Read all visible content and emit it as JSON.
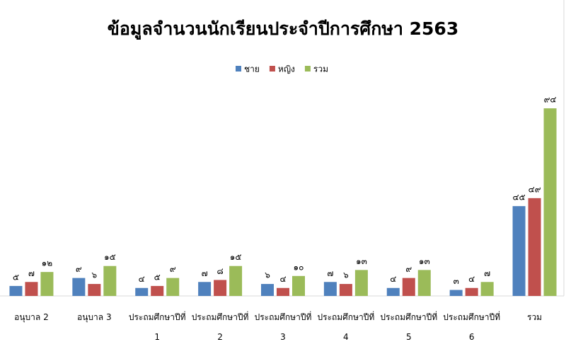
{
  "chart_data": {
    "type": "bar",
    "title": "ข้อมูลจำนวนนักเรียนประจำปีการศึกษา 2563",
    "categories": [
      "อนุบาล 2",
      "อนุบาล 3",
      "ประถมศึกษาปีที่ 1",
      "ประถมศึกษาปีที่ 2",
      "ประถมศึกษาปีที่ 3",
      "ประถมศึกษาปีที่ 4",
      "ประถมศึกษาปีที่ 5",
      "ประถมศึกษาปีที่ 6",
      "รวม"
    ],
    "series": [
      {
        "name": "ชาย",
        "color": "#4f81bd",
        "values": [
          5,
          9,
          4,
          7,
          6,
          7,
          4,
          3,
          45
        ],
        "value_labels": [
          "๕",
          "๙",
          "๔",
          "๗",
          "๖",
          "๗",
          "๔",
          "๓",
          "๔๕"
        ]
      },
      {
        "name": "หญิง",
        "color": "#c0504d",
        "values": [
          7,
          6,
          5,
          8,
          4,
          6,
          9,
          4,
          49
        ],
        "value_labels": [
          "๗",
          "๖",
          "๕",
          "๘",
          "๔",
          "๖",
          "๙",
          "๔",
          "๔๙"
        ]
      },
      {
        "name": "รวม",
        "color": "#9bbb59",
        "values": [
          12,
          15,
          9,
          15,
          10,
          13,
          13,
          7,
          94
        ],
        "value_labels": [
          "๑๒",
          "๑๕",
          "๙",
          "๑๕",
          "๑๐",
          "๑๓",
          "๑๓",
          "๗",
          "๙๔"
        ]
      }
    ],
    "legend": "top"
  }
}
